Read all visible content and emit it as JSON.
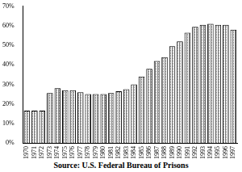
{
  "chart_data": {
    "type": "bar",
    "categories": [
      "1970",
      "1971",
      "1972",
      "1973",
      "1974",
      "1975",
      "1976",
      "1977",
      "1978",
      "1979",
      "1980",
      "1981",
      "1982",
      "1983",
      "1984",
      "1985",
      "1986",
      "1987",
      "1988",
      "1989",
      "1990",
      "1991",
      "1992",
      "1993",
      "1994",
      "1995",
      "1996",
      "1997"
    ],
    "values": [
      16.5,
      16.5,
      16.5,
      25.5,
      28,
      27,
      27,
      26,
      25,
      25,
      25,
      25.5,
      26.5,
      27.5,
      30,
      34,
      38,
      42,
      44,
      49.5,
      52,
      56.5,
      59.5,
      60.5,
      61,
      60.5,
      60.5,
      58
    ],
    "color": "#808080",
    "ylim": [
      0,
      70
    ],
    "yticks": [
      {
        "value": 0,
        "label": "0%"
      },
      {
        "value": 10,
        "label": "10%"
      },
      {
        "value": 20,
        "label": "20%"
      },
      {
        "value": 30,
        "label": "30%"
      },
      {
        "value": 40,
        "label": "40%"
      },
      {
        "value": 50,
        "label": "50%"
      },
      {
        "value": 60,
        "label": "60%"
      },
      {
        "value": 70,
        "label": "70%"
      }
    ],
    "grid": false,
    "annotations": [
      "Source: U.S. Federal Bureau of Prisons"
    ]
  }
}
